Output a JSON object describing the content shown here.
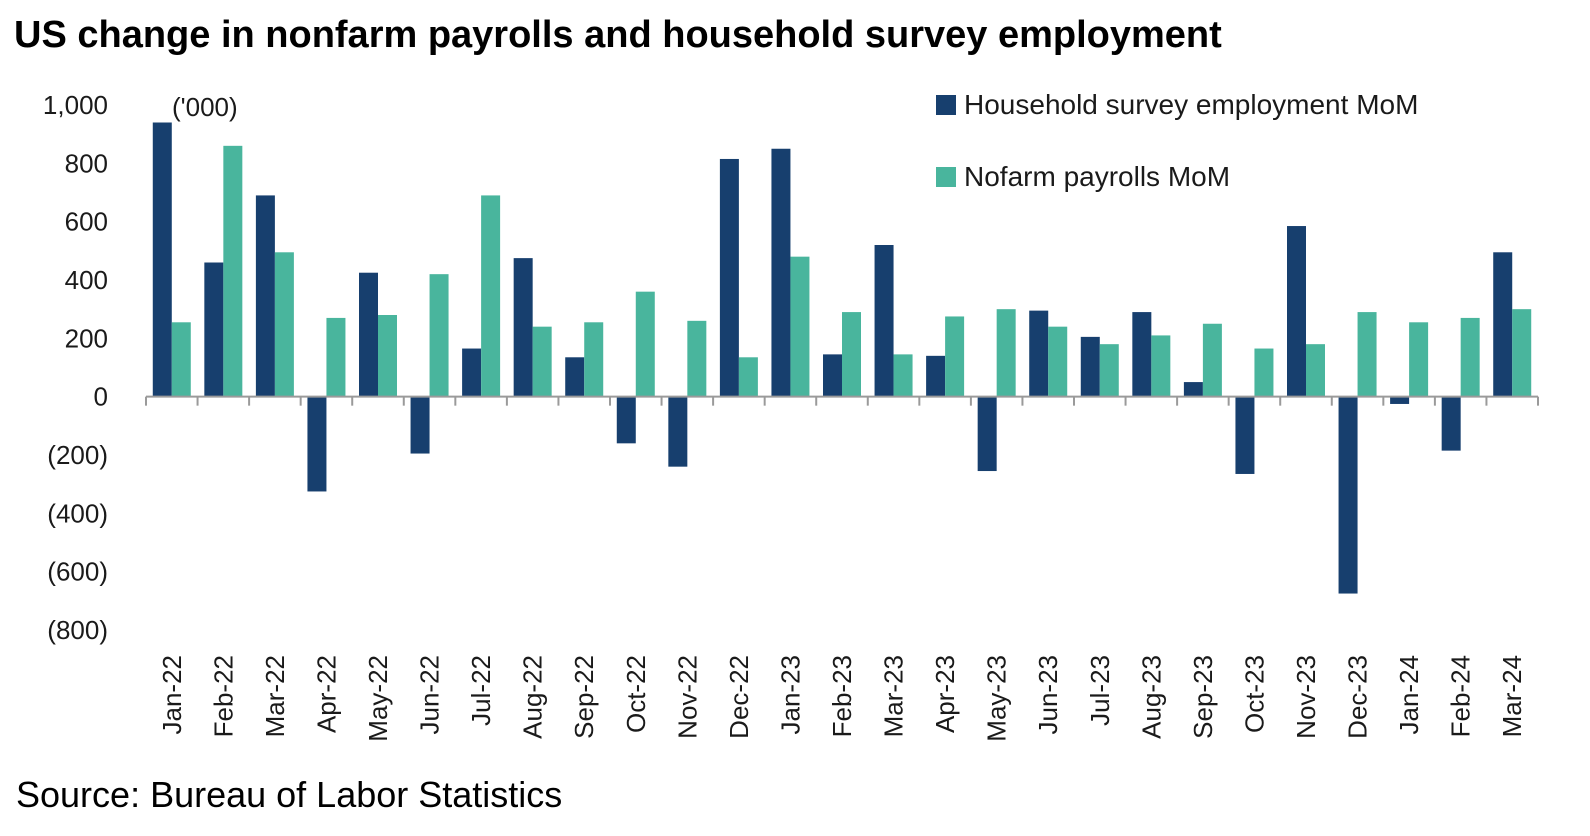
{
  "title": "US change in nonfarm payrolls and household survey employment",
  "source": "Source: Bureau of Labor Statistics",
  "colors": {
    "household": "#173f6e",
    "payrolls": "#49b59d",
    "axis": "#9a9a9a"
  },
  "chart_data": {
    "type": "bar",
    "unit_label": "('000)",
    "ylim": [
      -800,
      1000
    ],
    "yticks": [
      -800,
      -600,
      -400,
      -200,
      0,
      200,
      400,
      600,
      800,
      1000
    ],
    "ytick_labels": [
      "(800)",
      "(600)",
      "(400)",
      "(200)",
      "0",
      "200",
      "400",
      "600",
      "800",
      "1,000"
    ],
    "grid": false,
    "legend_position": "top-right",
    "categories": [
      "Jan-22",
      "Feb-22",
      "Mar-22",
      "Apr-22",
      "May-22",
      "Jun-22",
      "Jul-22",
      "Aug-22",
      "Sep-22",
      "Oct-22",
      "Nov-22",
      "Dec-22",
      "Jan-23",
      "Feb-23",
      "Mar-23",
      "Apr-23",
      "May-23",
      "Jun-23",
      "Jul-23",
      "Aug-23",
      "Sep-23",
      "Oct-23",
      "Nov-23",
      "Dec-23",
      "Jan-24",
      "Feb-24",
      "Mar-24"
    ],
    "series": [
      {
        "name": "Household survey employment MoM",
        "color": "#173f6e",
        "values": [
          940,
          460,
          690,
          -325,
          425,
          -195,
          165,
          475,
          135,
          -160,
          -240,
          815,
          850,
          145,
          520,
          140,
          -255,
          295,
          205,
          290,
          50,
          -265,
          585,
          -675,
          -25,
          -185,
          495
        ]
      },
      {
        "name": "Nofarm payrolls MoM",
        "color": "#49b59d",
        "values": [
          255,
          860,
          495,
          270,
          280,
          420,
          690,
          240,
          255,
          360,
          260,
          135,
          480,
          290,
          145,
          275,
          300,
          240,
          180,
          210,
          250,
          165,
          180,
          290,
          255,
          270,
          300
        ]
      }
    ]
  }
}
